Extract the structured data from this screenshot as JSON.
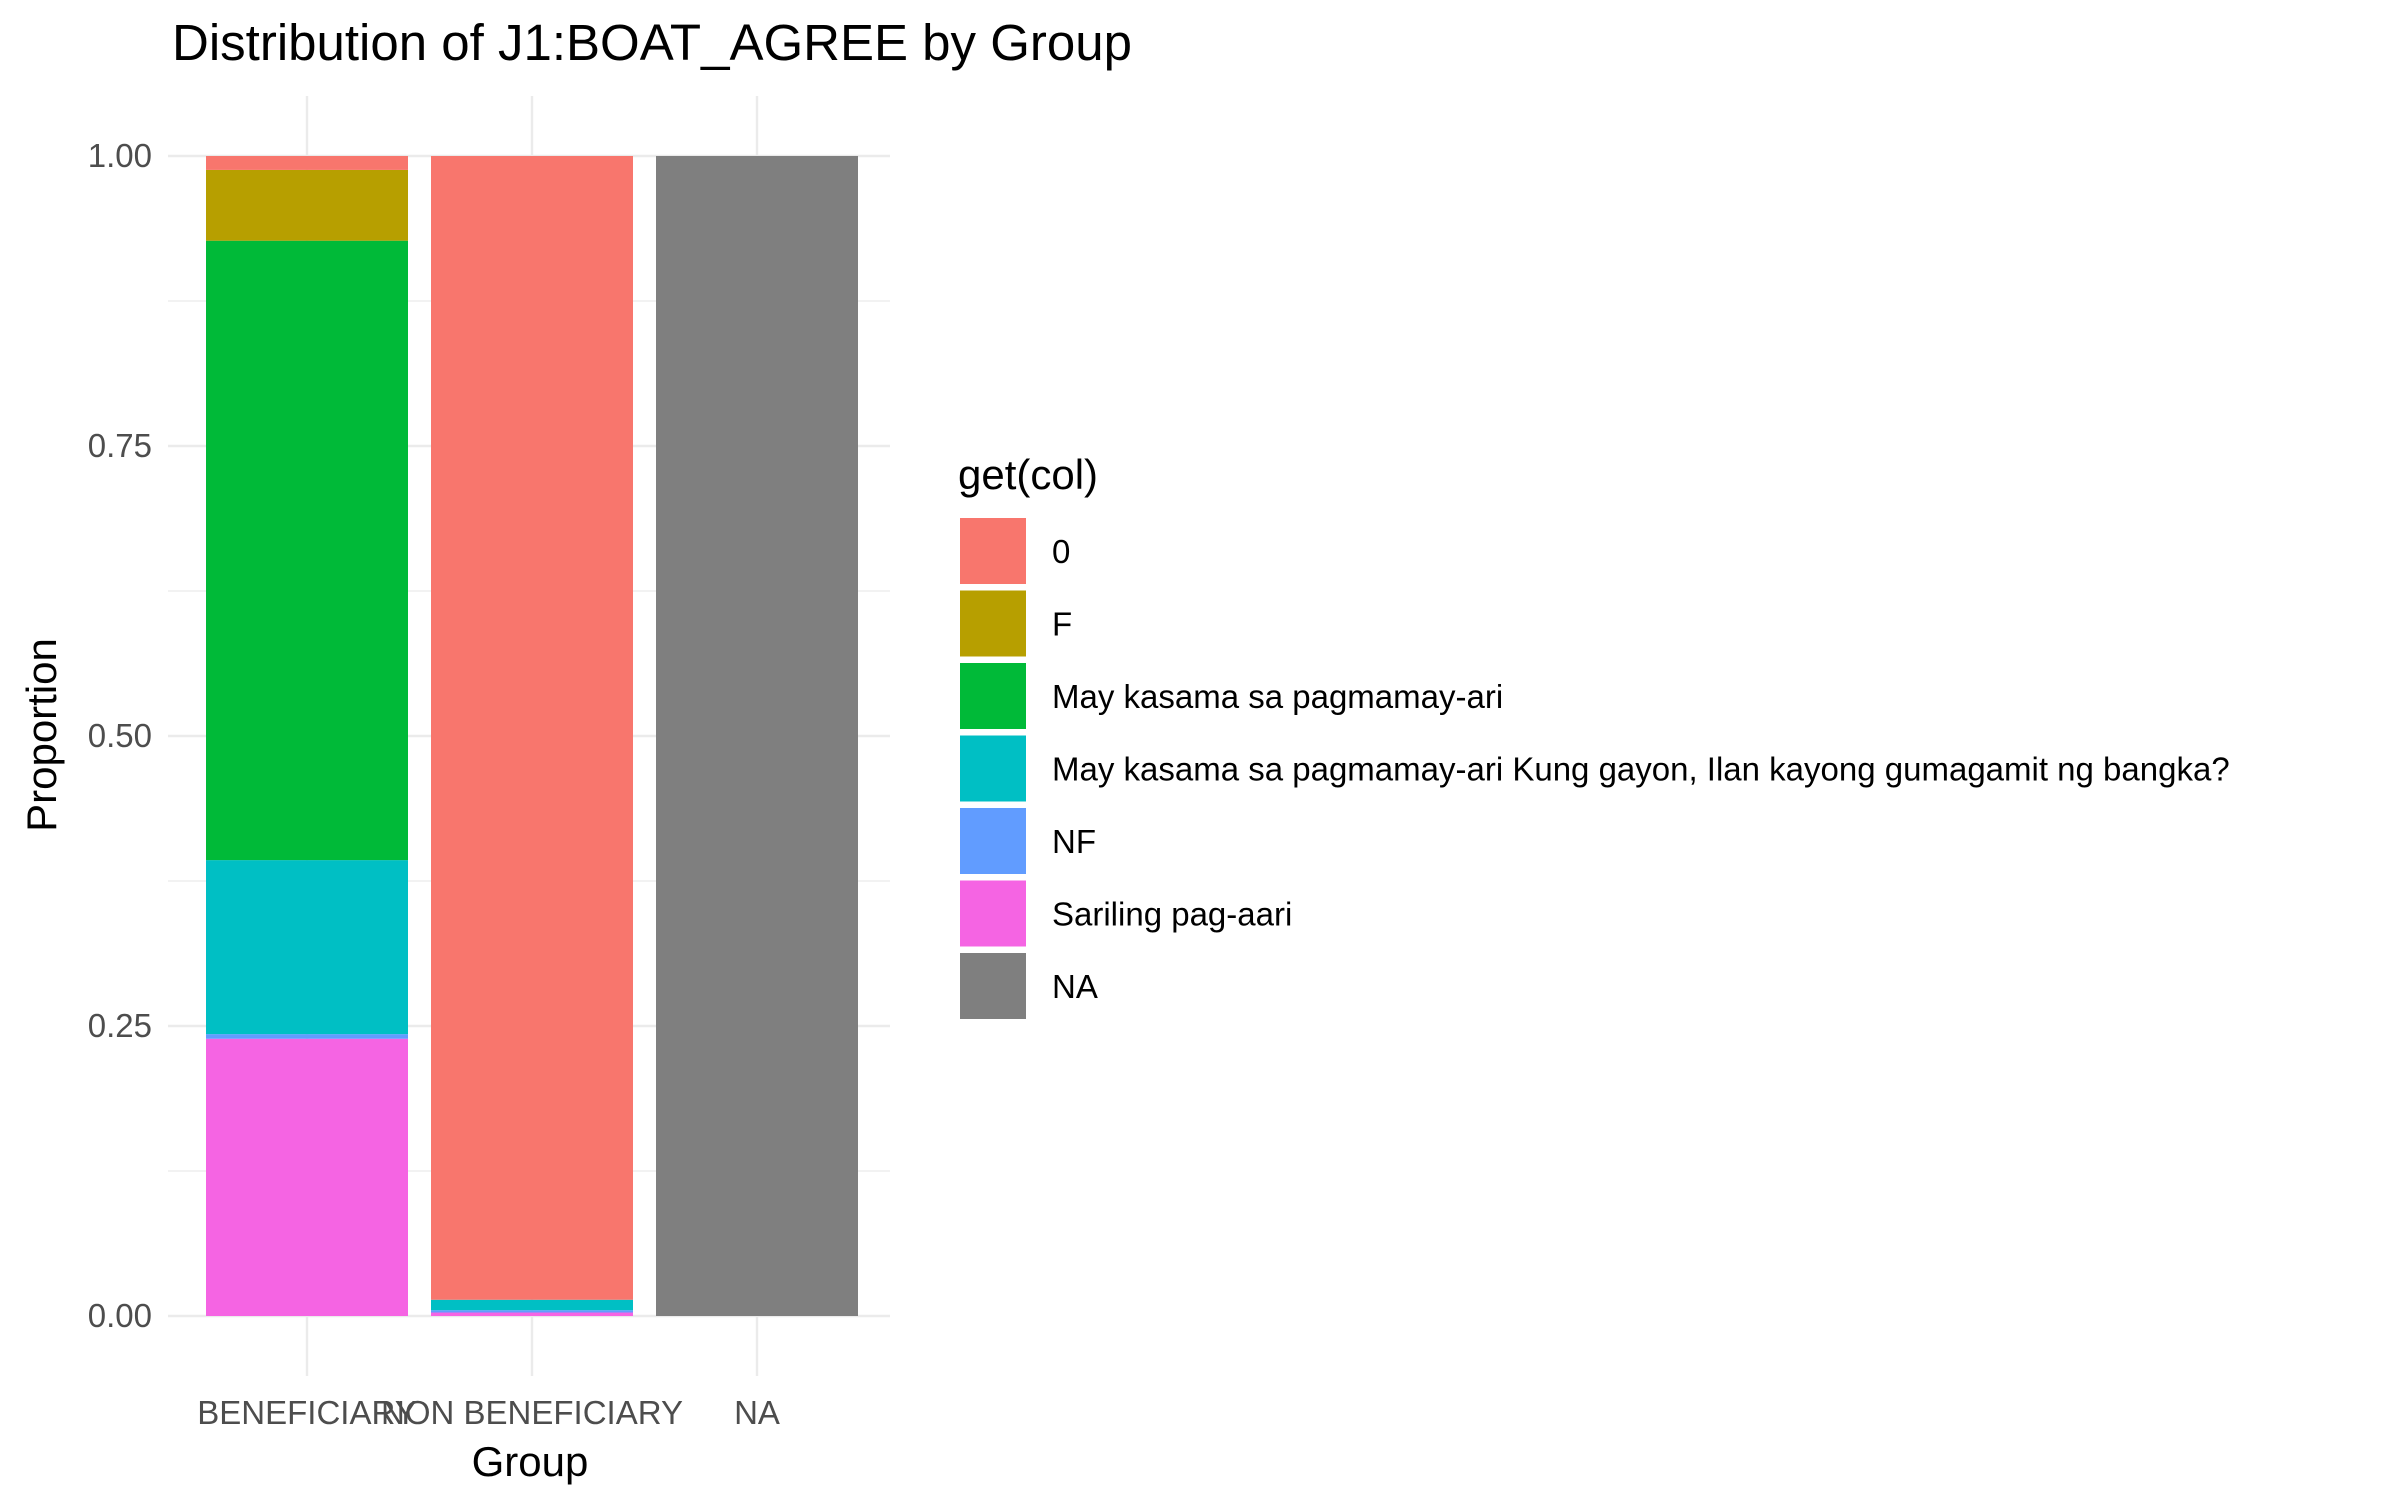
{
  "chart_data": {
    "type": "bar",
    "stacked": true,
    "title": "Distribution of J1:BOAT_AGREE by Group",
    "xlabel": "Group",
    "ylabel": "Proportion",
    "ylim": [
      0,
      1
    ],
    "yticks": [
      "0.00",
      "0.25",
      "0.50",
      "0.75",
      "1.00"
    ],
    "categories": [
      "BENEFICIARY",
      "NON BENEFICIARY",
      "NA"
    ],
    "legend": {
      "title": "get(col)",
      "position": "right"
    },
    "grid": true,
    "series": [
      {
        "name": "0",
        "color": "#F8766D",
        "values": [
          0.012,
          0.986,
          0
        ]
      },
      {
        "name": "F",
        "color": "#B79F00",
        "values": [
          0.061,
          0,
          0
        ]
      },
      {
        "name": "May kasama sa pagmamay-ari",
        "color": "#00BA38",
        "values": [
          0.534,
          0,
          0
        ]
      },
      {
        "name": "May kasama sa pagmamay-ari Kung gayon, Ilan kayong gumagamit ng bangka?",
        "color": "#00BFC4",
        "values": [
          0.15,
          0.009,
          0
        ]
      },
      {
        "name": "NF",
        "color": "#619CFF",
        "values": [
          0.004,
          0.002,
          0
        ]
      },
      {
        "name": "Sariling pag-aari",
        "color": "#F564E3",
        "values": [
          0.239,
          0.003,
          0
        ]
      },
      {
        "name": "NA",
        "color": "#7F7F7F",
        "values": [
          0,
          0,
          1
        ]
      }
    ]
  }
}
